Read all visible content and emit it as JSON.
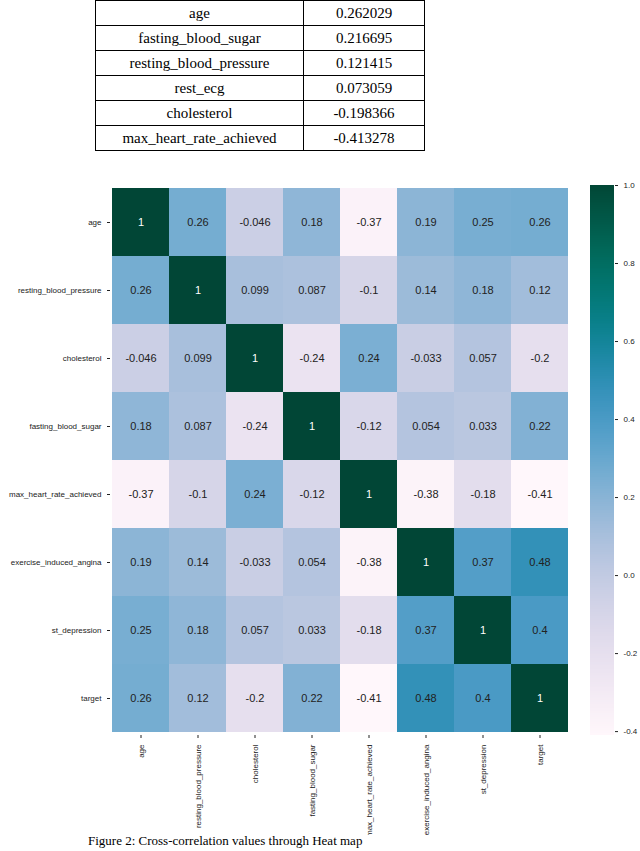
{
  "table": {
    "rows": [
      [
        "age",
        "0.262029"
      ],
      [
        "fasting_blood_sugar",
        "0.216695"
      ],
      [
        "resting_blood_pressure",
        "0.121415"
      ],
      [
        "rest_ecg",
        "0.073059"
      ],
      [
        "cholesterol",
        "-0.198366"
      ],
      [
        "max_heart_rate_achieved",
        "-0.413278"
      ]
    ]
  },
  "chart_data": {
    "type": "heatmap",
    "categories": [
      "age",
      "resting_blood_pressure",
      "cholesterol",
      "fasting_blood_sugar",
      "max_heart_rate_achieved",
      "exercise_induced_angina",
      "st_depression",
      "target"
    ],
    "cells": [
      [
        1,
        0.26,
        -0.046,
        0.18,
        -0.37,
        0.19,
        0.25,
        0.26
      ],
      [
        0.26,
        1,
        0.099,
        0.087,
        -0.1,
        0.14,
        0.18,
        0.12
      ],
      [
        -0.046,
        0.099,
        1,
        -0.24,
        0.24,
        -0.033,
        0.057,
        -0.2
      ],
      [
        0.18,
        0.087,
        -0.24,
        1,
        -0.12,
        0.054,
        0.033,
        0.22
      ],
      [
        -0.37,
        -0.1,
        0.24,
        -0.12,
        1,
        -0.38,
        -0.18,
        -0.41
      ],
      [
        0.19,
        0.14,
        -0.033,
        0.054,
        -0.38,
        1,
        0.37,
        0.48
      ],
      [
        0.25,
        0.18,
        0.057,
        0.033,
        -0.18,
        0.37,
        1,
        0.4
      ],
      [
        0.26,
        0.12,
        -0.2,
        0.22,
        -0.41,
        0.48,
        0.4,
        1
      ]
    ],
    "data_labels": true,
    "color": "PuBuGn",
    "colorbar": {
      "range": [
        -0.41,
        1
      ],
      "ticks": [
        {
          "value": -0.4,
          "label": "-0.4"
        },
        -0.2,
        {
          "value": 0,
          "label": "0.0"
        },
        0.2,
        0.4,
        0.6,
        0.8,
        {
          "value": 1,
          "label": "1.0"
        }
      ]
    }
  },
  "caption": "Figure 2: Cross-correlation values through Heat map"
}
